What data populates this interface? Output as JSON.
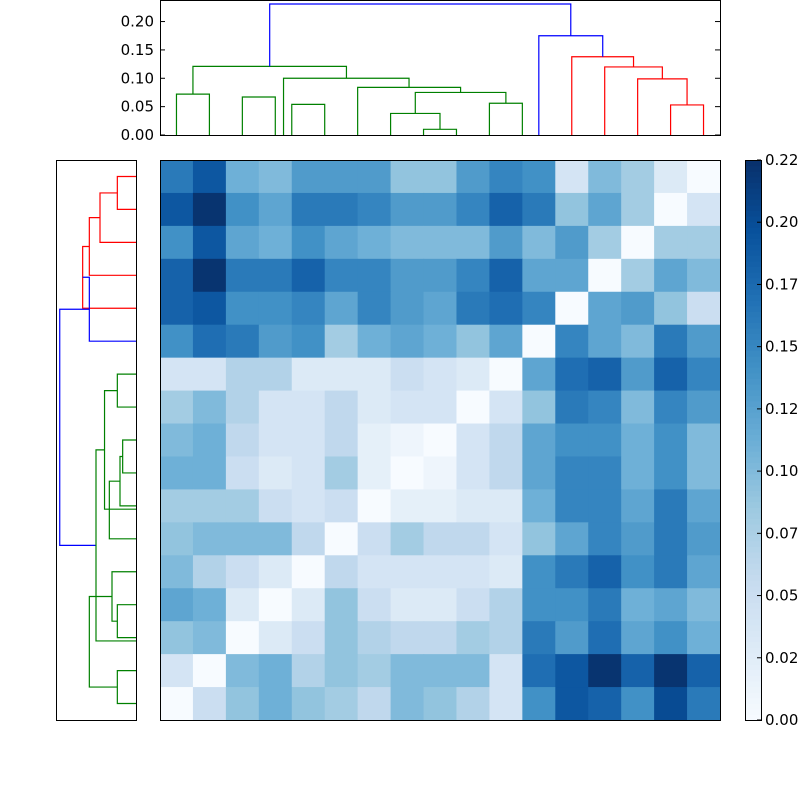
{
  "chart_data": [
    {
      "type": "dendrogram",
      "orientation": "top",
      "yticks": [
        "0.00",
        "0.05",
        "0.10",
        "0.15",
        "0.20"
      ],
      "ylim": [
        0,
        0.238
      ],
      "leaf_count": 17,
      "links": [
        {
          "left": 0,
          "right": 1,
          "height": 0.072,
          "color": "#008000"
        },
        {
          "left": 2,
          "right": 3,
          "height": 0.067,
          "color": "#008000"
        },
        {
          "left": 3.5,
          "right": 4.5,
          "height": 0.054,
          "color": "#008000"
        },
        {
          "left": 6.5,
          "right": 8,
          "height": 0.038,
          "color": "#008000"
        },
        {
          "left": 7.5,
          "right": 8.5,
          "height": 0.01,
          "color": "#008000"
        },
        {
          "left": 7.25,
          "right": 10,
          "height": 0.075,
          "color": "#008000"
        },
        {
          "left": 9.5,
          "right": 10.5,
          "height": 0.056,
          "color": "#008000"
        },
        {
          "left": 5.5,
          "right": 8.625,
          "height": 0.084,
          "color": "#008000"
        },
        {
          "left": 3.25,
          "right": 7.06,
          "height": 0.1,
          "color": "#008000"
        },
        {
          "left": 0.5,
          "right": 5.16,
          "height": 0.121,
          "color": "#008000"
        },
        {
          "left": 15,
          "right": 16,
          "height": 0.053,
          "color": "#ff0000"
        },
        {
          "left": 14,
          "right": 15.5,
          "height": 0.099,
          "color": "#ff0000"
        },
        {
          "left": 13,
          "right": 14.75,
          "height": 0.12,
          "color": "#ff0000"
        },
        {
          "left": 12,
          "right": 13.875,
          "height": 0.138,
          "color": "#ff0000"
        },
        {
          "left": 11,
          "right": 12.94,
          "height": 0.175,
          "color": "#0000ff"
        },
        {
          "left": 2.83,
          "right": 11.97,
          "height": 0.231,
          "color": "#0000ff"
        }
      ]
    },
    {
      "type": "dendrogram",
      "orientation": "left",
      "leaf_count": 17,
      "links": [
        {
          "left": 0,
          "right": 1,
          "height": 0.07,
          "color": "#ff0000"
        },
        {
          "left": 0.5,
          "right": 2,
          "height": 0.135,
          "color": "#ff0000"
        },
        {
          "left": 1.25,
          "right": 3,
          "height": 0.175,
          "color": "#ff0000"
        },
        {
          "left": 2.125,
          "right": 4,
          "height": 0.2,
          "color": "#ff0000"
        },
        {
          "left": 3.06,
          "right": 5,
          "height": 0.175,
          "color": "#0000ff"
        },
        {
          "left": 4.03,
          "right": 11.2,
          "height": 0.286,
          "color": "#0000ff"
        },
        {
          "left": 6,
          "right": 7,
          "height": 0.07,
          "color": "#008000"
        },
        {
          "left": 8,
          "right": 9,
          "height": 0.05,
          "color": "#008000"
        },
        {
          "left": 8.5,
          "right": 10,
          "height": 0.06,
          "color": "#008000"
        },
        {
          "left": 9.25,
          "right": 11,
          "height": 0.1,
          "color": "#008000"
        },
        {
          "left": 6.5,
          "right": 10.1,
          "height": 0.118,
          "color": "#008000"
        },
        {
          "left": 13,
          "right": 14,
          "height": 0.07,
          "color": "#008000"
        },
        {
          "left": 12,
          "right": 13.5,
          "height": 0.09,
          "color": "#008000"
        },
        {
          "left": 15,
          "right": 16,
          "height": 0.07,
          "color": "#008000"
        },
        {
          "left": 12.75,
          "right": 15.5,
          "height": 0.175,
          "color": "#008000"
        },
        {
          "left": 8.3,
          "right": 14.1,
          "height": 0.15,
          "color": "#008000"
        }
      ]
    },
    {
      "type": "heatmap",
      "colormap": "Blues",
      "vmin": 0,
      "vmax": 0.223,
      "colorbar_ticks": [
        "0.00",
        "0.02",
        "0.05",
        "0.07",
        "0.10",
        "0.12",
        "0.15",
        "0.17",
        "0.20",
        "0.22"
      ],
      "values": [
        [
          0.16,
          0.19,
          0.11,
          0.1,
          0.13,
          0.13,
          0.13,
          0.09,
          0.09,
          0.13,
          0.15,
          0.14,
          0.04,
          0.1,
          0.08,
          0.03,
          0.0
        ],
        [
          0.19,
          0.22,
          0.14,
          0.12,
          0.16,
          0.16,
          0.15,
          0.13,
          0.13,
          0.15,
          0.18,
          0.16,
          0.09,
          0.12,
          0.08,
          0.0,
          0.04
        ],
        [
          0.14,
          0.19,
          0.12,
          0.11,
          0.14,
          0.12,
          0.11,
          0.1,
          0.1,
          0.1,
          0.13,
          0.1,
          0.13,
          0.08,
          0.0,
          0.08,
          0.08
        ],
        [
          0.18,
          0.22,
          0.16,
          0.16,
          0.18,
          0.15,
          0.15,
          0.13,
          0.13,
          0.15,
          0.18,
          0.12,
          0.12,
          0.0,
          0.08,
          0.12,
          0.1
        ],
        [
          0.18,
          0.19,
          0.14,
          0.14,
          0.15,
          0.12,
          0.15,
          0.13,
          0.12,
          0.16,
          0.17,
          0.15,
          0.0,
          0.12,
          0.13,
          0.09,
          0.05
        ],
        [
          0.14,
          0.17,
          0.16,
          0.13,
          0.14,
          0.08,
          0.11,
          0.12,
          0.11,
          0.09,
          0.12,
          0.0,
          0.15,
          0.12,
          0.1,
          0.16,
          0.13
        ],
        [
          0.04,
          0.04,
          0.07,
          0.07,
          0.03,
          0.03,
          0.03,
          0.05,
          0.04,
          0.03,
          0.0,
          0.12,
          0.17,
          0.18,
          0.13,
          0.18,
          0.15
        ],
        [
          0.08,
          0.1,
          0.07,
          0.04,
          0.04,
          0.06,
          0.03,
          0.04,
          0.04,
          0.0,
          0.04,
          0.09,
          0.16,
          0.15,
          0.1,
          0.15,
          0.13
        ],
        [
          0.1,
          0.11,
          0.06,
          0.04,
          0.04,
          0.06,
          0.02,
          0.01,
          0.0,
          0.04,
          0.06,
          0.12,
          0.14,
          0.14,
          0.11,
          0.14,
          0.1
        ],
        [
          0.11,
          0.11,
          0.05,
          0.03,
          0.04,
          0.08,
          0.02,
          0.0,
          0.01,
          0.04,
          0.06,
          0.12,
          0.15,
          0.15,
          0.11,
          0.14,
          0.1
        ],
        [
          0.08,
          0.08,
          0.08,
          0.05,
          0.04,
          0.05,
          0.0,
          0.02,
          0.02,
          0.03,
          0.03,
          0.11,
          0.15,
          0.15,
          0.12,
          0.16,
          0.12
        ],
        [
          0.09,
          0.1,
          0.1,
          0.1,
          0.06,
          0.0,
          0.05,
          0.08,
          0.06,
          0.06,
          0.04,
          0.09,
          0.12,
          0.15,
          0.13,
          0.16,
          0.13
        ],
        [
          0.1,
          0.07,
          0.05,
          0.03,
          0.0,
          0.06,
          0.04,
          0.04,
          0.04,
          0.04,
          0.03,
          0.14,
          0.16,
          0.18,
          0.14,
          0.16,
          0.12
        ],
        [
          0.12,
          0.11,
          0.03,
          0.0,
          0.03,
          0.09,
          0.05,
          0.03,
          0.03,
          0.05,
          0.07,
          0.14,
          0.14,
          0.16,
          0.11,
          0.12,
          0.1
        ],
        [
          0.09,
          0.1,
          0.0,
          0.03,
          0.05,
          0.09,
          0.07,
          0.06,
          0.06,
          0.08,
          0.07,
          0.16,
          0.13,
          0.17,
          0.12,
          0.14,
          0.11
        ],
        [
          0.04,
          0.0,
          0.1,
          0.11,
          0.07,
          0.09,
          0.08,
          0.1,
          0.1,
          0.1,
          0.04,
          0.17,
          0.19,
          0.22,
          0.18,
          0.22,
          0.18
        ],
        [
          0.0,
          0.05,
          0.09,
          0.11,
          0.09,
          0.08,
          0.06,
          0.1,
          0.09,
          0.07,
          0.04,
          0.14,
          0.19,
          0.18,
          0.14,
          0.2,
          0.16
        ]
      ]
    }
  ]
}
